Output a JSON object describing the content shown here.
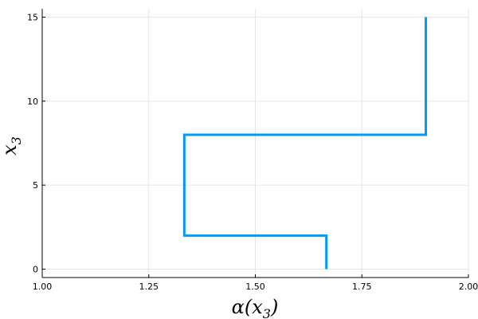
{
  "chart_data": {
    "type": "line",
    "xlabel_main": "α(x",
    "xlabel_sub": "3",
    "xlabel_close": ")",
    "ylabel_main": "x",
    "ylabel_sub": "3",
    "xlim": [
      1.0,
      2.0
    ],
    "ylim": [
      -0.5,
      15.5
    ],
    "x_ticks": [
      1.0,
      1.25,
      1.5,
      1.75,
      2.0
    ],
    "x_tick_labels": [
      "1.00",
      "1.25",
      "1.50",
      "1.75",
      "2.00"
    ],
    "y_ticks": [
      0,
      5,
      10,
      15
    ],
    "y_tick_labels": [
      "0",
      "5",
      "10",
      "15"
    ],
    "grid": true,
    "series": [
      {
        "color": "#009AFA",
        "points": [
          {
            "x": 1.6667,
            "y": 0
          },
          {
            "x": 1.6667,
            "y": 2
          },
          {
            "x": 1.3333,
            "y": 2
          },
          {
            "x": 1.3333,
            "y": 8
          },
          {
            "x": 1.9,
            "y": 8
          },
          {
            "x": 1.9,
            "y": 15
          }
        ]
      }
    ]
  }
}
